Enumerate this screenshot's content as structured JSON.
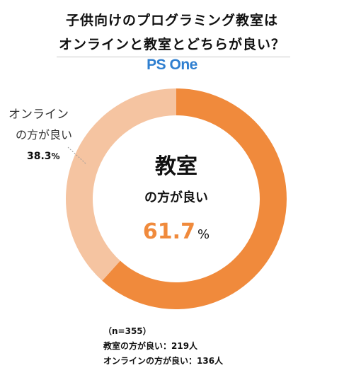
{
  "title_lines": [
    "子供向けのプログラミング教室は",
    "オンラインと教室とどちらが良い？"
  ],
  "logo": {
    "text": "PS One",
    "color": "#2f7fd0"
  },
  "chart_data": {
    "type": "pie",
    "style": "donut",
    "slices": [
      {
        "label_main": "教室",
        "label_sub": "の方が良い",
        "value": 61.7,
        "value_text": "61.7",
        "unit": "%",
        "color": "#f08a3c"
      },
      {
        "label_main": "オンライン",
        "label_sub": "の方が良い",
        "value": 38.3,
        "value_text": "38.3",
        "unit": "%",
        "color": "#f5c4a1"
      }
    ]
  },
  "notes": {
    "n": "（n=355）",
    "classroom": "教室の方が良い：219人",
    "online": "オンラインの方が良い：136人"
  }
}
